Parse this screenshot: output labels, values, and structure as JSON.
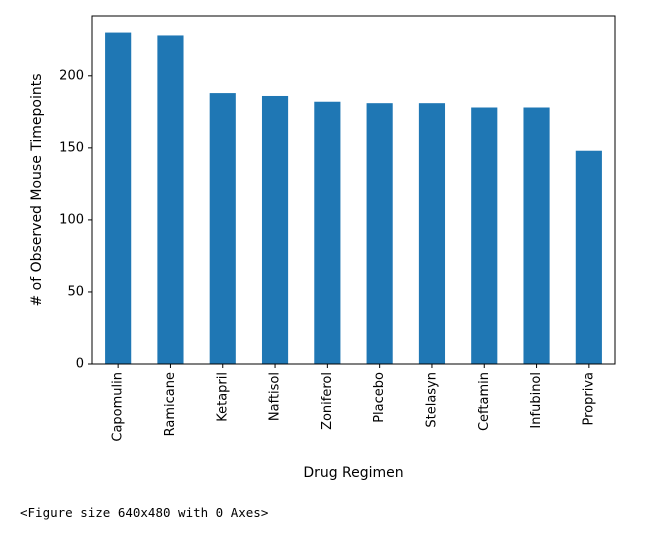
{
  "chart_data": {
    "type": "bar",
    "title": "",
    "xlabel": "Drug Regimen",
    "ylabel": "# of Observed Mouse Timepoints",
    "categories": [
      "Capomulin",
      "Ramicane",
      "Ketapril",
      "Naftisol",
      "Zoniferol",
      "Placebo",
      "Stelasyn",
      "Ceftamin",
      "Infubinol",
      "Propriva"
    ],
    "values": [
      230,
      228,
      188,
      186,
      182,
      181,
      181,
      178,
      178,
      148
    ],
    "ylim": [
      0,
      241.5
    ],
    "yticks": [
      0,
      50,
      100,
      150,
      200
    ],
    "bar_color": "#1f77b4",
    "grid": false,
    "legend": "none"
  },
  "caption": "<Figure size 640x480 with 0 Axes>"
}
